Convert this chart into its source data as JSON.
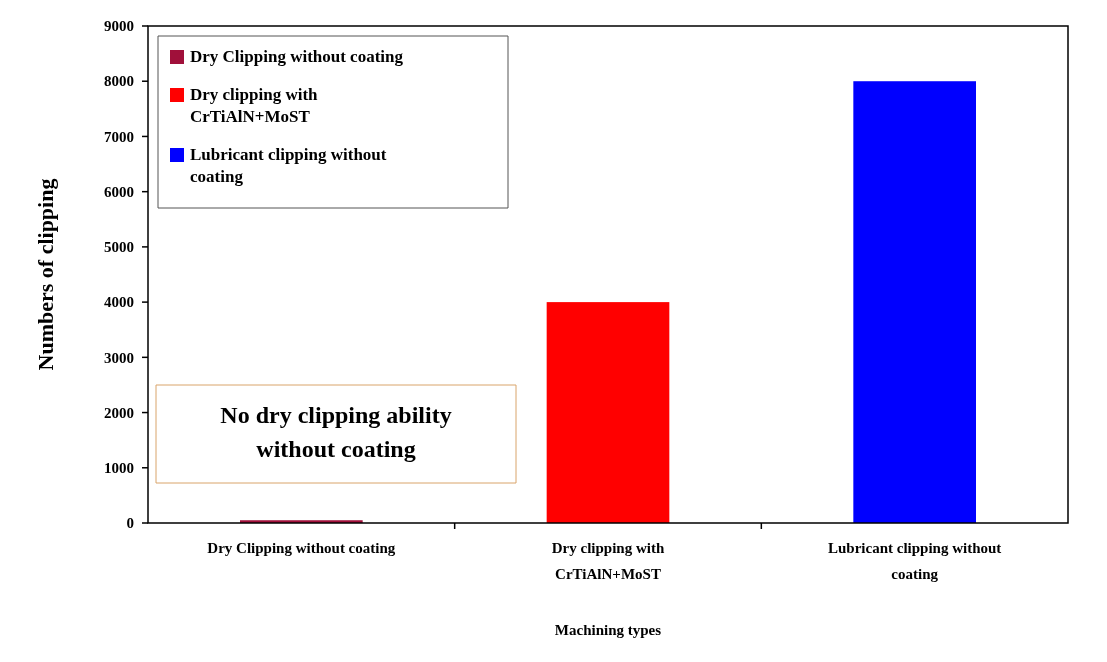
{
  "chart_data": {
    "type": "bar",
    "xlabel": "Machining types",
    "ylabel": "Numbers of clipping",
    "categories": [
      "Dry Clipping without coating",
      "Dry clipping with CrTiAlN+MoST",
      "Lubricant clipping without coating"
    ],
    "series": [
      {
        "name": "Dry Clipping without coating",
        "color": "#a0103a",
        "values": [
          50,
          null,
          null
        ]
      },
      {
        "name": "Dry clipping with CrTiAlN+MoST",
        "color": "#ff0000",
        "values": [
          null,
          4000,
          null
        ]
      },
      {
        "name": "Lubricant clipping without coating",
        "color": "#0000ff",
        "values": [
          null,
          null,
          8000
        ]
      }
    ],
    "ylim": [
      0,
      9000
    ],
    "yticks": [
      0,
      1000,
      2000,
      3000,
      4000,
      5000,
      6000,
      7000,
      8000,
      9000
    ],
    "grid": false,
    "legend": "top left",
    "annotations": [
      "No dry clipping ability without coating"
    ]
  }
}
